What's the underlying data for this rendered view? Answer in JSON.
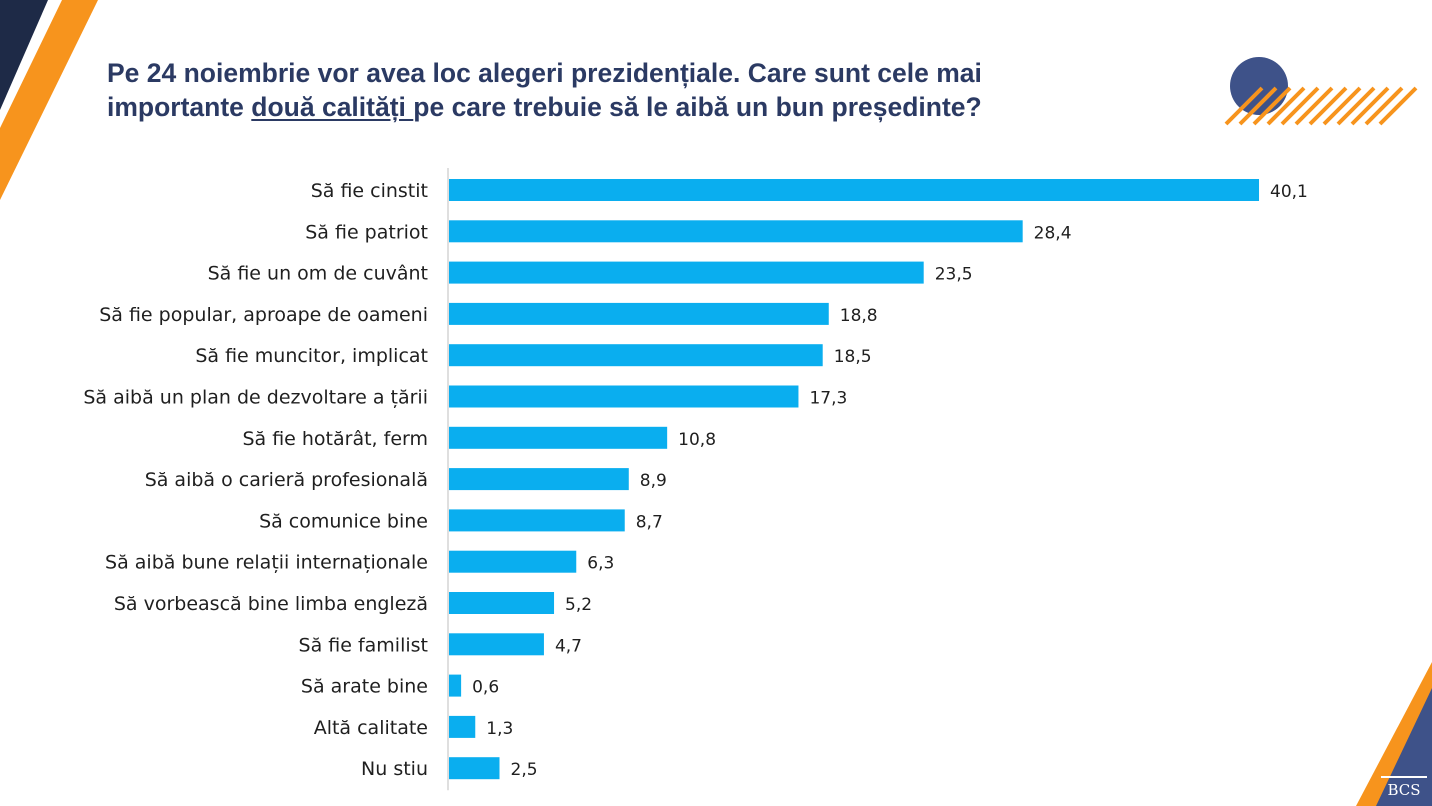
{
  "title": {
    "line1": "Pe 24 noiembrie vor avea loc alegeri prezidențiale. Care sunt cele mai",
    "line2_before": "importante ",
    "line2_underlined": "două calități ",
    "line2_after": "pe care trebuie să le aibă un bun președinte?"
  },
  "brand": {
    "logo_text": "BCS"
  },
  "colors": {
    "bar": "#0aaeef",
    "title": "#2b3a63",
    "navy": "#1e2a47",
    "orange": "#f7941d",
    "circle": "#3e5289"
  },
  "chart_data": {
    "type": "bar",
    "orientation": "horizontal",
    "title": "Pe 24 noiembrie vor avea loc alegeri prezidențiale. Care sunt cele mai importante două calități pe care trebuie să le aibă un bun președinte?",
    "categories": [
      "Să fie cinstit",
      "Să fie patriot",
      "Să fie un om de cuvânt",
      "Să fie popular, aproape de oameni",
      "Să fie muncitor, implicat",
      "Să aibă un plan de dezvoltare a țării",
      "Să fie hotărât, ferm",
      "Să aibă o carieră profesională",
      "Să comunice bine",
      "Să aibă bune relații internaționale",
      "Să vorbească bine limba engleză",
      "Să fie familist",
      "Să arate bine",
      "Altă calitate",
      "Nu stiu"
    ],
    "values": [
      40.1,
      28.4,
      23.5,
      18.8,
      18.5,
      17.3,
      10.8,
      8.9,
      8.7,
      6.3,
      5.2,
      4.7,
      0.6,
      1.3,
      2.5
    ],
    "value_labels": [
      "40,1",
      "28,4",
      "23,5",
      "18,8",
      "18,5",
      "17,3",
      "10,8",
      "8,9",
      "8,7",
      "6,3",
      "5,2",
      "4,7",
      "0,6",
      "1,3",
      "2,5"
    ],
    "xlim": [
      0,
      40.1
    ],
    "xlabel": "",
    "ylabel": "",
    "grid": false,
    "legend": "none"
  }
}
